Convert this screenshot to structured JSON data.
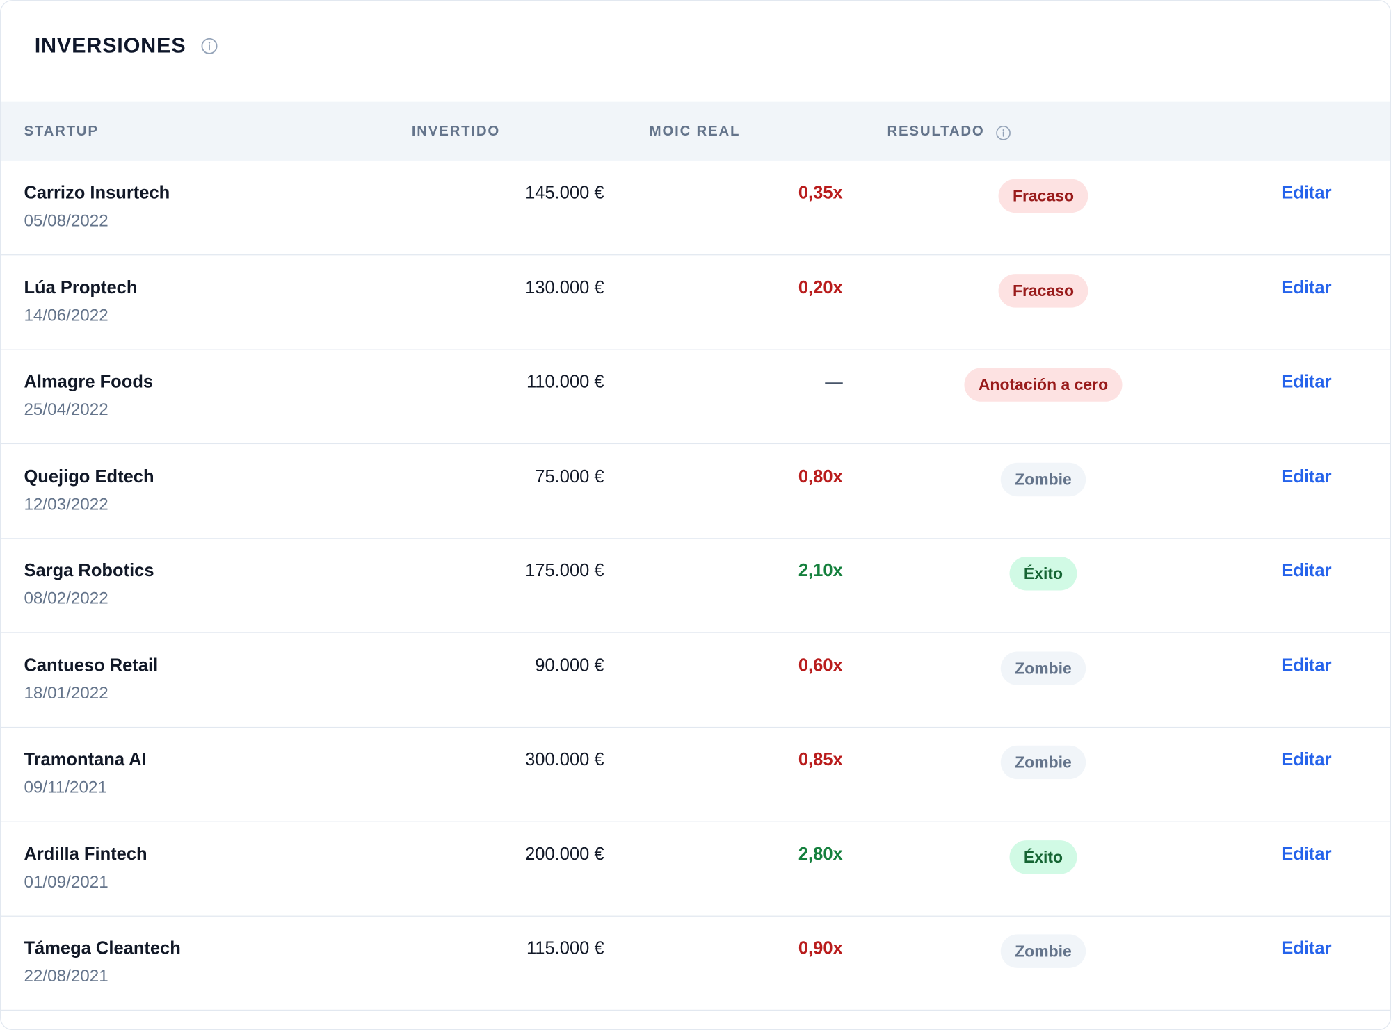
{
  "panel": {
    "title": "INVERSIONES"
  },
  "table": {
    "headers": {
      "startup": "STARTUP",
      "invested": "INVERTIDO",
      "moic": "MOIC REAL",
      "result": "RESULTADO"
    },
    "rows": [
      {
        "name": "Carrizo Insurtech",
        "date": "05/08/2022",
        "invested": "145.000 €",
        "moic": "0,35x",
        "moic_tone": "negative",
        "result": "Fracaso",
        "result_tone": "fail",
        "action": "Editar"
      },
      {
        "name": "Lúa Proptech",
        "date": "14/06/2022",
        "invested": "130.000 €",
        "moic": "0,20x",
        "moic_tone": "negative",
        "result": "Fracaso",
        "result_tone": "fail",
        "action": "Editar"
      },
      {
        "name": "Almagre Foods",
        "date": "25/04/2022",
        "invested": "110.000 €",
        "moic": "—",
        "moic_tone": "none",
        "result": "Anotación a cero",
        "result_tone": "fail",
        "action": "Editar"
      },
      {
        "name": "Quejigo Edtech",
        "date": "12/03/2022",
        "invested": "75.000 €",
        "moic": "0,80x",
        "moic_tone": "negative",
        "result": "Zombie",
        "result_tone": "zombie",
        "action": "Editar"
      },
      {
        "name": "Sarga Robotics",
        "date": "08/02/2022",
        "invested": "175.000 €",
        "moic": "2,10x",
        "moic_tone": "positive",
        "result": "Éxito",
        "result_tone": "success",
        "action": "Editar"
      },
      {
        "name": "Cantueso Retail",
        "date": "18/01/2022",
        "invested": "90.000 €",
        "moic": "0,60x",
        "moic_tone": "negative",
        "result": "Zombie",
        "result_tone": "zombie",
        "action": "Editar"
      },
      {
        "name": "Tramontana AI",
        "date": "09/11/2021",
        "invested": "300.000 €",
        "moic": "0,85x",
        "moic_tone": "negative",
        "result": "Zombie",
        "result_tone": "zombie",
        "action": "Editar"
      },
      {
        "name": "Ardilla Fintech",
        "date": "01/09/2021",
        "invested": "200.000 €",
        "moic": "2,80x",
        "moic_tone": "positive",
        "result": "Éxito",
        "result_tone": "success",
        "action": "Editar"
      },
      {
        "name": "Támega Cleantech",
        "date": "22/08/2021",
        "invested": "115.000 €",
        "moic": "0,90x",
        "moic_tone": "negative",
        "result": "Zombie",
        "result_tone": "zombie",
        "action": "Editar"
      }
    ]
  },
  "colors": {
    "negative": "#b91c1c",
    "positive": "#15803d",
    "link": "#2563eb",
    "header_bg": "#f1f5f9"
  },
  "icons": {
    "title_info": "info-icon",
    "result_info": "info-icon"
  }
}
